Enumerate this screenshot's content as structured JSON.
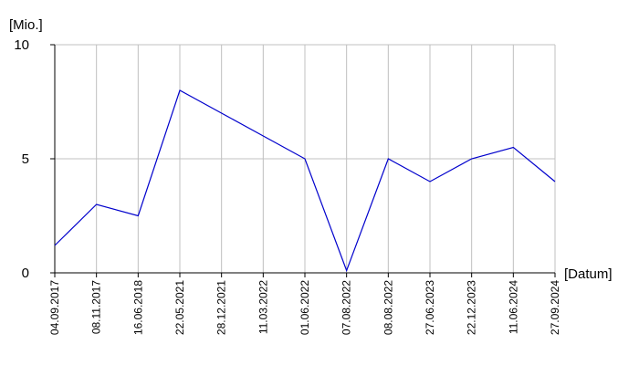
{
  "chart_data": {
    "type": "line",
    "y_label": "[Mio.]",
    "x_label": "[Datum]",
    "categories": [
      "04.09.2017",
      "08.11.2017",
      "16.06.2018",
      "22.05.2021",
      "28.12.2021",
      "11.03.2022",
      "01.06.2022",
      "07.08.2022",
      "08.08.2022",
      "27.06.2023",
      "22.12.2023",
      "11.06.2024",
      "27.09.2024"
    ],
    "values": [
      1.2,
      3,
      2.5,
      8,
      7,
      6,
      5,
      0.1,
      5,
      4,
      5,
      5.5,
      4
    ],
    "color": "#0000cc",
    "ylim": [
      0,
      10
    ],
    "yticks": [
      0,
      5,
      10
    ],
    "grid": true
  }
}
